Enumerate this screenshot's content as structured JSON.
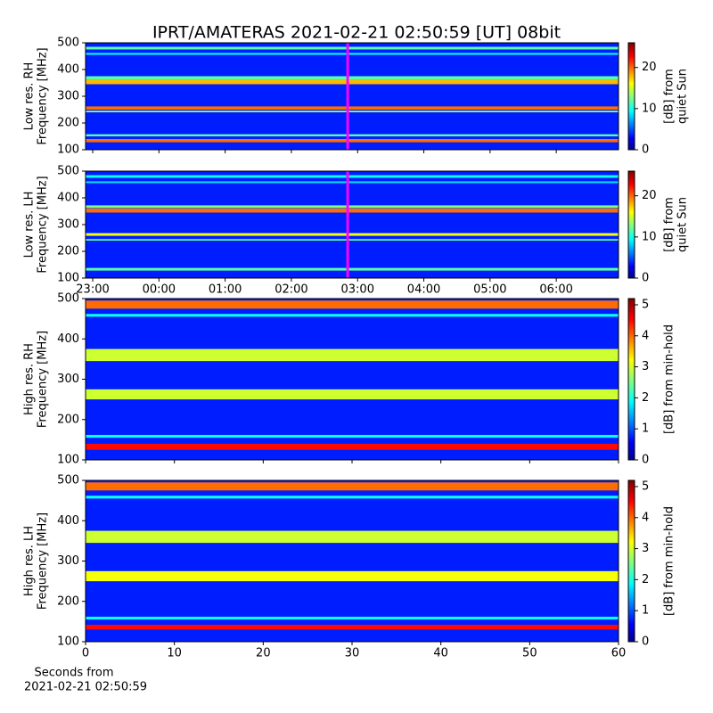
{
  "chart_data": [
    {
      "type": "heatmap",
      "title": "IPRT/AMATERAS 2021-02-21 02:50:59 [UT]   08bit",
      "ylabel": [
        "Low res. RH",
        "Frequency [MHz]"
      ],
      "colorbar_label": [
        "[dB] from",
        "quiet Sun"
      ],
      "xlim": [
        -1.108,
        6.94
      ],
      "xticks": [
        {
          "value": -1,
          "label": "23:00"
        },
        {
          "value": 0,
          "label": "00:00"
        },
        {
          "value": 1,
          "label": "01:00"
        },
        {
          "value": 2,
          "label": "02:00"
        },
        {
          "value": 3,
          "label": "03:00"
        },
        {
          "value": 4,
          "label": "04:00"
        },
        {
          "value": 5,
          "label": "05:00"
        },
        {
          "value": 6,
          "label": "06:00"
        }
      ],
      "show_xtick_labels": false,
      "ylim": [
        100,
        500
      ],
      "yticks": [
        100,
        200,
        300,
        400,
        500
      ],
      "clim": [
        0,
        26
      ],
      "cticks": [
        0,
        10,
        20
      ],
      "marker_x": 2.85,
      "marker_color": "#ff00ff",
      "background": 4,
      "bands": [
        {
          "low": 128,
          "high": 140,
          "level": 20
        },
        {
          "low": 150,
          "high": 158,
          "level": 12
        },
        {
          "low": 240,
          "high": 246,
          "level": 14
        },
        {
          "low": 250,
          "high": 262,
          "level": 20
        },
        {
          "low": 345,
          "high": 362,
          "level": 18
        },
        {
          "low": 362,
          "high": 375,
          "level": 12
        },
        {
          "low": 455,
          "high": 462,
          "level": 10
        },
        {
          "low": 475,
          "high": 485,
          "level": 12
        }
      ]
    },
    {
      "type": "heatmap",
      "ylabel": [
        "Low res. LH",
        "Frequency [MHz]"
      ],
      "colorbar_label": [
        "[dB] from",
        "quiet Sun"
      ],
      "xlim": [
        -1.108,
        6.94
      ],
      "xticks": [
        {
          "value": -1,
          "label": "23:00"
        },
        {
          "value": 0,
          "label": "00:00"
        },
        {
          "value": 1,
          "label": "01:00"
        },
        {
          "value": 2,
          "label": "02:00"
        },
        {
          "value": 3,
          "label": "03:00"
        },
        {
          "value": 4,
          "label": "04:00"
        },
        {
          "value": 5,
          "label": "05:00"
        },
        {
          "value": 6,
          "label": "06:00"
        }
      ],
      "show_xtick_labels": true,
      "ylim": [
        100,
        500
      ],
      "yticks": [
        100,
        200,
        300,
        400,
        500
      ],
      "clim": [
        0,
        26
      ],
      "cticks": [
        0,
        10,
        20
      ],
      "marker_x": 2.85,
      "marker_color": "#ff00ff",
      "background": 4,
      "bands": [
        {
          "low": 128,
          "high": 138,
          "level": 12
        },
        {
          "low": 240,
          "high": 246,
          "level": 12
        },
        {
          "low": 258,
          "high": 268,
          "level": 16
        },
        {
          "low": 345,
          "high": 360,
          "level": 20
        },
        {
          "low": 362,
          "high": 372,
          "level": 13
        },
        {
          "low": 455,
          "high": 462,
          "level": 9
        },
        {
          "low": 475,
          "high": 485,
          "level": 10
        }
      ]
    },
    {
      "type": "heatmap",
      "ylabel": [
        "High res. RH",
        "Frequency [MHz]"
      ],
      "colorbar_label": [
        "[dB] from min-hold"
      ],
      "xlim": [
        0,
        60
      ],
      "xticks": [
        0,
        10,
        20,
        30,
        40,
        50,
        60
      ],
      "show_xtick_labels": false,
      "ylim": [
        100,
        500
      ],
      "yticks": [
        100,
        200,
        300,
        400,
        500
      ],
      "clim": [
        0,
        5.2
      ],
      "cticks": [
        0,
        1,
        2,
        3,
        4,
        5
      ],
      "background": 0.8,
      "bands": [
        {
          "low": 125,
          "high": 140,
          "level": 4.5
        },
        {
          "low": 155,
          "high": 162,
          "level": 2
        },
        {
          "low": 250,
          "high": 275,
          "level": 3
        },
        {
          "low": 345,
          "high": 375,
          "level": 3
        },
        {
          "low": 455,
          "high": 462,
          "level": 2
        },
        {
          "low": 475,
          "high": 495,
          "level": 4
        }
      ]
    },
    {
      "type": "heatmap",
      "ylabel": [
        "High res. LH",
        "Frequency [MHz]"
      ],
      "colorbar_label": [
        "[dB] from min-hold"
      ],
      "xlabel": [
        "Seconds from",
        "2021-02-21 02:50:59"
      ],
      "xlim": [
        0,
        60
      ],
      "xticks": [
        0,
        10,
        20,
        30,
        40,
        50,
        60
      ],
      "show_xtick_labels": true,
      "ylim": [
        100,
        500
      ],
      "yticks": [
        100,
        200,
        300,
        400,
        500
      ],
      "clim": [
        0,
        5.2
      ],
      "cticks": [
        0,
        1,
        2,
        3,
        4,
        5
      ],
      "background": 0.8,
      "bands": [
        {
          "low": 130,
          "high": 142,
          "level": 4.5
        },
        {
          "low": 155,
          "high": 162,
          "level": 2
        },
        {
          "low": 250,
          "high": 275,
          "level": 3.2
        },
        {
          "low": 345,
          "high": 375,
          "level": 3
        },
        {
          "low": 455,
          "high": 462,
          "level": 2
        },
        {
          "low": 475,
          "high": 495,
          "level": 4
        }
      ]
    }
  ]
}
